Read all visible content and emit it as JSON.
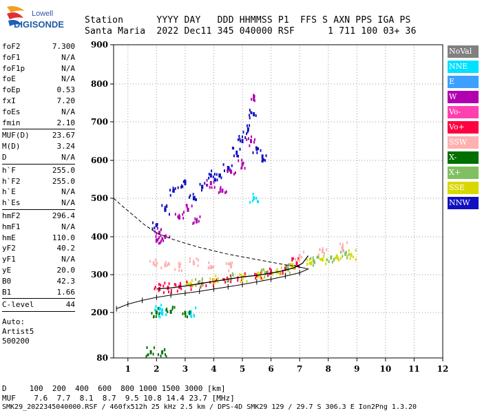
{
  "logo": {
    "line1": "Lowell",
    "line2": "DIGISONDE"
  },
  "header": {
    "line1": "Station      YYYY DAY   DDD HHMMSS P1  FFS S AXN PPS IGA PS",
    "line2": "Santa Maria  2022 Dec11 345 040000 RSF      1 711 100 03+ 36"
  },
  "params_group1": [
    {
      "k": "foF2",
      "v": "7.300"
    },
    {
      "k": "foF1",
      "v": "N/A"
    },
    {
      "k": "foF1p",
      "v": "N/A"
    },
    {
      "k": "foE",
      "v": "N/A"
    },
    {
      "k": "foEp",
      "v": "0.53"
    },
    {
      "k": "fxI",
      "v": "7.20"
    },
    {
      "k": "foEs",
      "v": "N/A"
    },
    {
      "k": "fmin",
      "v": "2.10"
    }
  ],
  "params_group2": [
    {
      "k": "MUF(D)",
      "v": "23.67"
    },
    {
      "k": "M(D)",
      "v": "3.24"
    },
    {
      "k": "D",
      "v": "N/A"
    }
  ],
  "params_group3": [
    {
      "k": "h`F",
      "v": "255.0"
    },
    {
      "k": "h`F2",
      "v": "255.0"
    },
    {
      "k": "h`E",
      "v": "N/A"
    },
    {
      "k": "h`Es",
      "v": "N/A"
    }
  ],
  "params_group4": [
    {
      "k": "hmF2",
      "v": "296.4"
    },
    {
      "k": "hmF1",
      "v": "N/A"
    },
    {
      "k": "hmE",
      "v": "110.0"
    },
    {
      "k": "yF2",
      "v": "40.2"
    },
    {
      "k": "yF1",
      "v": "N/A"
    },
    {
      "k": "yE",
      "v": "20.0"
    },
    {
      "k": "B0",
      "v": "42.3"
    },
    {
      "k": "B1",
      "v": "1.66"
    }
  ],
  "params_group5": [
    {
      "k": "C-level",
      "v": "44"
    }
  ],
  "auto": {
    "line1": "Auto:",
    "line2": "Artist5",
    "line3": "500200"
  },
  "legend": [
    {
      "label": "NoVal",
      "color": "#808080"
    },
    {
      "label": "NNE",
      "color": "#00e0ff"
    },
    {
      "label": "E",
      "color": "#3ca0ff"
    },
    {
      "label": "W",
      "color": "#b000b0"
    },
    {
      "label": "Vo-",
      "color": "#ff40b0"
    },
    {
      "label": "Vo+",
      "color": "#ff0040"
    },
    {
      "label": "SSW",
      "color": "#ffb0b0"
    },
    {
      "label": "X-",
      "color": "#007000"
    },
    {
      "label": "X+",
      "color": "#80c060"
    },
    {
      "label": "SSE",
      "color": "#d8d800"
    },
    {
      "label": "NNW",
      "color": "#1010c0"
    }
  ],
  "footer": {
    "line1": "D     100  200  400  600  800 1000 1500 3000 [km]",
    "line2": "MUF    7.6  7.7  8.1  8.7  9.5 10.8 14.4 23.7 [MHz]",
    "line3": "SMK29_2022345040000.RSF / 460fx512h 25 kHz 2.5 km / DPS-4D SMK29 129 / 29.7 S 306.3 E Ion2Png 1.3.20"
  },
  "chart_data": {
    "type": "scatter",
    "xlabel": "",
    "ylabel": "",
    "xlim": [
      0.5,
      12
    ],
    "ylim": [
      80,
      900
    ],
    "xticks": [
      1,
      2,
      3,
      4,
      5,
      6,
      7,
      8,
      9,
      10,
      11,
      12
    ],
    "yticks": [
      80,
      200,
      300,
      400,
      500,
      600,
      700,
      800,
      900
    ],
    "grid": true,
    "legend_placement": "right",
    "series": [
      {
        "name": "NNW",
        "color": "#1010c0",
        "points": [
          [
            2,
            430
          ],
          [
            2.3,
            470
          ],
          [
            2.6,
            520
          ],
          [
            3,
            540
          ],
          [
            3.3,
            500
          ],
          [
            3.6,
            530
          ],
          [
            3.9,
            560
          ],
          [
            4.2,
            560
          ],
          [
            4.5,
            580
          ],
          [
            4.8,
            620
          ],
          [
            5,
            650
          ],
          [
            5.2,
            680
          ],
          [
            5.4,
            720
          ],
          [
            5.5,
            630
          ],
          [
            5.7,
            610
          ]
        ]
      },
      {
        "name": "W",
        "color": "#b000b0",
        "points": [
          [
            2,
            390
          ],
          [
            2.1,
            410
          ],
          [
            2.3,
            400
          ],
          [
            2.8,
            450
          ],
          [
            3.1,
            470
          ],
          [
            3.4,
            440
          ],
          [
            3.9,
            540
          ],
          [
            4.3,
            520
          ],
          [
            4.6,
            570
          ],
          [
            5,
            590
          ],
          [
            5.3,
            650
          ],
          [
            5.4,
            760
          ]
        ]
      },
      {
        "name": "Vo+",
        "color": "#ff0040",
        "points": [
          [
            2.1,
            262
          ],
          [
            2.4,
            265
          ],
          [
            2.8,
            268
          ],
          [
            3.2,
            272
          ],
          [
            3.6,
            275
          ],
          [
            4,
            280
          ],
          [
            4.5,
            286
          ],
          [
            5,
            292
          ],
          [
            5.5,
            298
          ],
          [
            6,
            305
          ],
          [
            6.5,
            315
          ],
          [
            6.9,
            330
          ]
        ]
      },
      {
        "name": "SSE",
        "color": "#d8d800",
        "points": [
          [
            3.2,
            275
          ],
          [
            4,
            285
          ],
          [
            5,
            292
          ],
          [
            5.6,
            300
          ],
          [
            6.2,
            308
          ],
          [
            6.8,
            318
          ],
          [
            7.4,
            330
          ],
          [
            7.8,
            340
          ],
          [
            8.3,
            348
          ],
          [
            8.8,
            352
          ]
        ]
      },
      {
        "name": "X+",
        "color": "#80c060",
        "points": [
          [
            3.5,
            280
          ],
          [
            4.6,
            290
          ],
          [
            5.8,
            304
          ],
          [
            6.6,
            314
          ],
          [
            7.5,
            335
          ],
          [
            8.1,
            345
          ],
          [
            8.6,
            355
          ]
        ]
      },
      {
        "name": "SSW",
        "color": "#ffb0b0",
        "points": [
          [
            1.9,
            330
          ],
          [
            2.3,
            325
          ],
          [
            2.8,
            322
          ],
          [
            3.3,
            330
          ],
          [
            3.9,
            320
          ],
          [
            4.6,
            322
          ],
          [
            7,
            350
          ],
          [
            7.8,
            362
          ],
          [
            8.5,
            372
          ]
        ]
      },
      {
        "name": "NNE",
        "color": "#00e0ff",
        "points": [
          [
            2.1,
            210
          ],
          [
            5.4,
            500
          ],
          [
            2.2,
            197
          ],
          [
            3.2,
            200
          ]
        ]
      },
      {
        "name": "X-",
        "color": "#007000",
        "points": [
          [
            2,
            200
          ],
          [
            2.5,
            202
          ],
          [
            3,
            199
          ],
          [
            1.8,
            95
          ],
          [
            2.2,
            95
          ]
        ]
      }
    ],
    "trace": [
      [
        0.6,
        210
      ],
      [
        1,
        222
      ],
      [
        1.5,
        232
      ],
      [
        2,
        240
      ],
      [
        2.5,
        246
      ],
      [
        3,
        251
      ],
      [
        3.5,
        256
      ],
      [
        4,
        262
      ],
      [
        4.5,
        268
      ],
      [
        5,
        274
      ],
      [
        5.5,
        281
      ],
      [
        6,
        288
      ],
      [
        6.5,
        296
      ],
      [
        7,
        305
      ],
      [
        7.3,
        315
      ],
      [
        7,
        320
      ],
      [
        6.8,
        325
      ]
    ],
    "profile": [
      [
        2,
        262
      ],
      [
        2.5,
        265
      ],
      [
        3,
        270
      ],
      [
        3.5,
        276
      ],
      [
        4,
        282
      ],
      [
        4.5,
        288
      ],
      [
        5,
        294
      ],
      [
        5.5,
        298
      ],
      [
        6,
        304
      ],
      [
        6.4,
        310
      ],
      [
        6.8,
        318
      ],
      [
        7.1,
        330
      ],
      [
        7.3,
        350
      ]
    ],
    "dashed": [
      [
        0.5,
        500
      ],
      [
        0.8,
        480
      ],
      [
        1.2,
        455
      ],
      [
        1.6,
        430
      ],
      [
        2,
        410
      ],
      [
        2.5,
        395
      ],
      [
        3,
        383
      ],
      [
        3.5,
        372
      ],
      [
        4,
        363
      ],
      [
        4.5,
        354
      ],
      [
        5,
        347
      ],
      [
        5.5,
        340
      ],
      [
        6,
        333
      ],
      [
        6.5,
        326
      ],
      [
        7,
        320
      ]
    ]
  }
}
